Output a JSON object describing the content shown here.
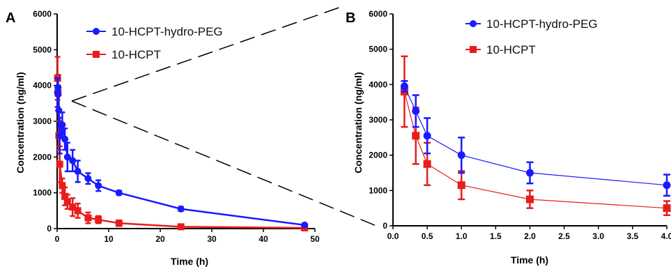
{
  "chart_data": [
    {
      "panel_label": "A",
      "type": "line",
      "xlabel": "Time (h)",
      "ylabel": "Concentration (ng/ml)",
      "xlim": [
        0,
        50
      ],
      "ylim": [
        0,
        6000
      ],
      "xticks": [
        "0",
        "10",
        "20",
        "30",
        "40",
        "50"
      ],
      "yticks": [
        "0",
        "1000",
        "2000",
        "3000",
        "4000",
        "5000",
        "6000"
      ],
      "legend_position": "top-right",
      "series": [
        {
          "name": "10-HCPT-hydro-PEG",
          "color": "#1a1aff",
          "marker": "circle",
          "x": [
            0.083,
            0.167,
            0.333,
            0.5,
            1,
            1.5,
            2,
            3,
            4,
            6,
            8,
            12,
            24,
            48
          ],
          "y": [
            3800,
            3950,
            3300,
            2600,
            2900,
            2500,
            2000,
            1900,
            1600,
            1400,
            1200,
            1000,
            550,
            100
          ],
          "err": [
            400,
            250,
            450,
            500,
            350,
            300,
            400,
            300,
            300,
            150,
            150,
            60,
            60,
            30
          ]
        },
        {
          "name": "10-HCPT",
          "color": "#e81c1c",
          "marker": "square",
          "x": [
            0.083,
            0.167,
            0.333,
            0.5,
            1,
            1.5,
            2,
            3,
            4,
            6,
            8,
            12,
            24,
            48
          ],
          "y": [
            4200,
            3800,
            2600,
            1800,
            1200,
            900,
            750,
            600,
            500,
            300,
            250,
            150,
            50,
            20
          ],
          "err": [
            600,
            500,
            400,
            500,
            200,
            250,
            200,
            250,
            200,
            150,
            100,
            80,
            40,
            10
          ]
        }
      ]
    },
    {
      "panel_label": "B",
      "type": "line",
      "xlabel": "Time (h)",
      "ylabel": "Concentration (ng/ml)",
      "xlim": [
        0,
        4.0
      ],
      "ylim": [
        0,
        6000
      ],
      "xticks": [
        "0.0",
        "0.5",
        "1.0",
        "1.5",
        "2.0",
        "2.5",
        "3.0",
        "3.5",
        "4.0"
      ],
      "yticks": [
        "0",
        "1000",
        "2000",
        "3000",
        "4000",
        "5000",
        "6000"
      ],
      "legend_position": "top-right",
      "series": [
        {
          "name": "10-HCPT-hydro-PEG",
          "color": "#1a1aff",
          "marker": "circle",
          "x": [
            0.167,
            0.333,
            0.5,
            1.0,
            2.0,
            4.0
          ],
          "y": [
            3950,
            3250,
            2550,
            2000,
            1500,
            1150
          ],
          "err": [
            150,
            450,
            500,
            500,
            300,
            300
          ]
        },
        {
          "name": "10-HCPT",
          "color": "#e81c1c",
          "marker": "square",
          "x": [
            0.167,
            0.333,
            0.5,
            1.0,
            2.0,
            4.0
          ],
          "y": [
            3800,
            2550,
            1750,
            1150,
            750,
            500
          ],
          "err": [
            1000,
            800,
            600,
            400,
            250,
            200
          ]
        }
      ]
    }
  ]
}
